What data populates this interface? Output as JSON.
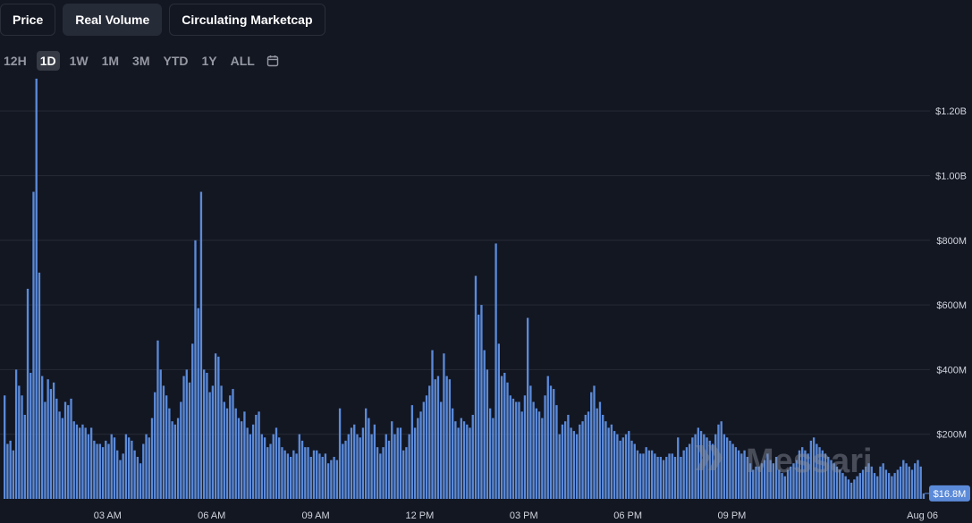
{
  "tabs": [
    {
      "label": "Price",
      "active": false
    },
    {
      "label": "Real Volume",
      "active": true
    },
    {
      "label": "Circulating Marketcap",
      "active": false
    }
  ],
  "ranges": [
    {
      "label": "12H",
      "active": false
    },
    {
      "label": "1D",
      "active": true
    },
    {
      "label": "1W",
      "active": false
    },
    {
      "label": "1M",
      "active": false
    },
    {
      "label": "3M",
      "active": false
    },
    {
      "label": "YTD",
      "active": false
    },
    {
      "label": "1Y",
      "active": false
    },
    {
      "label": "ALL",
      "active": false
    }
  ],
  "icons": {
    "calendar": "calendar-icon",
    "watermark_logo": "messari-logo-icon"
  },
  "watermark": "Messari",
  "colors": {
    "bar": "#5b8ad9",
    "background": "#131722",
    "badge": "#5b8ad9"
  },
  "chart_data": {
    "type": "bar",
    "ylim": [
      0,
      1300
    ],
    "y_unit": "M",
    "y_ticks": [
      {
        "value": 200,
        "label": "$200M"
      },
      {
        "value": 400,
        "label": "$400M"
      },
      {
        "value": 600,
        "label": "$600M"
      },
      {
        "value": 800,
        "label": "$800M"
      },
      {
        "value": 1000,
        "label": "$1.00B"
      },
      {
        "value": 1200,
        "label": "$1.20B"
      }
    ],
    "x_ticks": [
      {
        "index": 36,
        "label": "03 AM"
      },
      {
        "index": 72,
        "label": "06 AM"
      },
      {
        "index": 108,
        "label": "09 AM"
      },
      {
        "index": 144,
        "label": "12 PM"
      },
      {
        "index": 180,
        "label": "03 PM"
      },
      {
        "index": 216,
        "label": "06 PM"
      },
      {
        "index": 252,
        "label": "09 PM"
      },
      {
        "index": 288,
        "label": "Aug 06"
      }
    ],
    "last_value_label": "$16.8M",
    "last_value": 16.8,
    "values": [
      320,
      170,
      180,
      150,
      400,
      350,
      320,
      260,
      650,
      390,
      950,
      1300,
      700,
      380,
      300,
      370,
      340,
      360,
      310,
      270,
      250,
      300,
      290,
      310,
      240,
      230,
      220,
      230,
      220,
      200,
      220,
      180,
      170,
      170,
      160,
      180,
      170,
      200,
      190,
      150,
      120,
      140,
      200,
      190,
      180,
      150,
      130,
      110,
      170,
      200,
      190,
      250,
      330,
      490,
      400,
      350,
      320,
      280,
      240,
      230,
      250,
      300,
      380,
      400,
      360,
      480,
      800,
      590,
      950,
      400,
      390,
      330,
      350,
      450,
      440,
      350,
      300,
      280,
      320,
      340,
      280,
      250,
      240,
      270,
      220,
      200,
      230,
      260,
      270,
      200,
      190,
      160,
      170,
      200,
      220,
      190,
      160,
      150,
      140,
      130,
      150,
      140,
      200,
      180,
      160,
      160,
      130,
      150,
      150,
      140,
      130,
      140,
      110,
      120,
      130,
      120,
      280,
      170,
      180,
      200,
      220,
      230,
      200,
      190,
      220,
      280,
      250,
      200,
      230,
      160,
      140,
      160,
      200,
      180,
      240,
      200,
      220,
      220,
      150,
      160,
      200,
      290,
      220,
      250,
      270,
      300,
      320,
      350,
      460,
      370,
      380,
      300,
      450,
      380,
      370,
      280,
      240,
      220,
      250,
      240,
      230,
      220,
      260,
      690,
      570,
      600,
      460,
      400,
      280,
      250,
      790,
      480,
      380,
      390,
      360,
      320,
      310,
      300,
      300,
      270,
      320,
      560,
      350,
      300,
      280,
      270,
      250,
      320,
      380,
      350,
      340,
      290,
      200,
      230,
      240,
      260,
      220,
      210,
      200,
      230,
      240,
      260,
      270,
      330,
      350,
      280,
      300,
      260,
      240,
      220,
      230,
      210,
      200,
      180,
      190,
      200,
      210,
      180,
      170,
      150,
      140,
      140,
      160,
      150,
      150,
      140,
      130,
      130,
      120,
      130,
      140,
      140,
      130,
      190,
      130,
      150,
      160,
      170,
      190,
      200,
      220,
      210,
      200,
      190,
      180,
      170,
      200,
      230,
      240,
      200,
      190,
      180,
      170,
      160,
      150,
      140,
      150,
      130,
      110,
      90,
      100,
      100,
      110,
      120,
      140,
      120,
      110,
      130,
      90,
      80,
      70,
      90,
      100,
      110,
      120,
      150,
      160,
      150,
      140,
      180,
      190,
      170,
      160,
      150,
      140,
      130,
      120,
      110,
      100,
      90,
      80,
      70,
      60,
      50,
      60,
      70,
      80,
      90,
      100,
      110,
      100,
      80,
      70,
      100,
      110,
      90,
      80,
      70,
      80,
      90,
      100,
      120,
      110,
      100,
      90,
      110,
      120,
      100,
      16.8
    ]
  }
}
